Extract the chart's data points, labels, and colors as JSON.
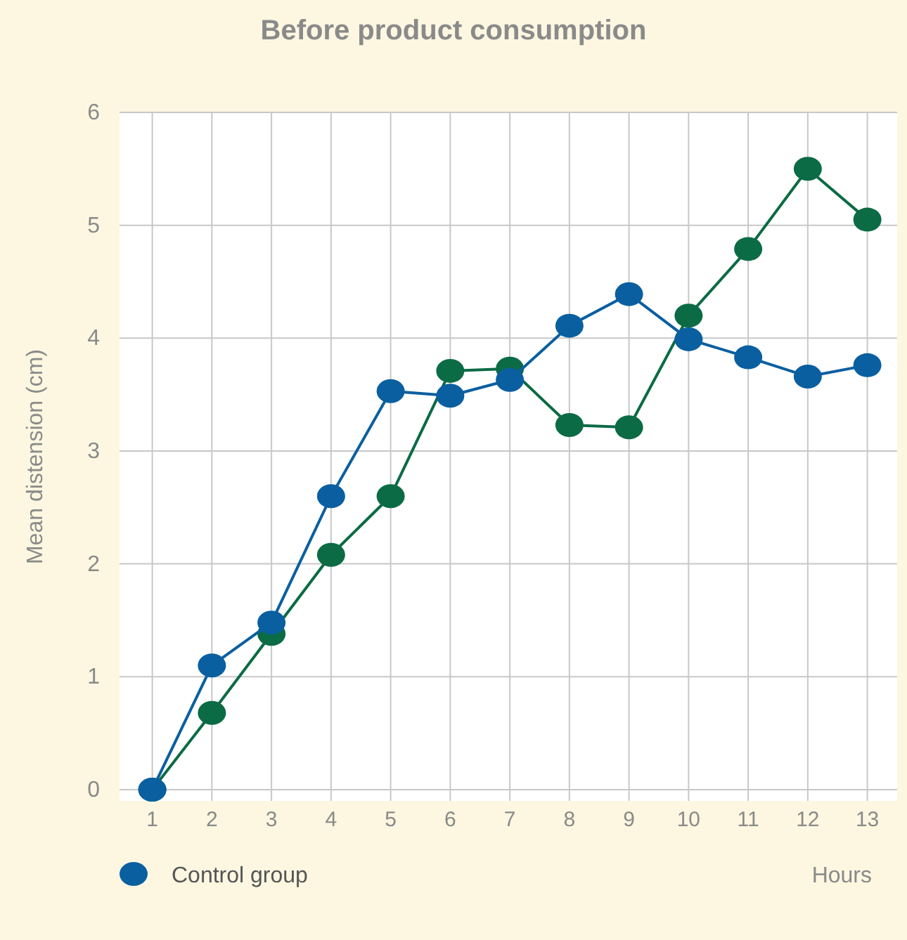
{
  "chart_data": {
    "type": "line",
    "title": "Before product consumption",
    "xlabel": "Hours",
    "ylabel": "Mean distension (cm)",
    "x": [
      1,
      2,
      3,
      4,
      5,
      6,
      7,
      8,
      9,
      10,
      11,
      12,
      13
    ],
    "series": [
      {
        "color": "#0b6b45",
        "values": [
          0,
          0.68,
          1.38,
          2.08,
          2.6,
          3.71,
          3.73,
          3.23,
          3.21,
          4.2,
          4.79,
          5.5,
          5.05
        ]
      },
      {
        "name": "Control group",
        "color": "#0a5fa0",
        "values": [
          0,
          1.1,
          1.48,
          2.6,
          3.53,
          3.49,
          3.63,
          4.11,
          4.39,
          3.99,
          3.83,
          3.66,
          3.76
        ]
      }
    ],
    "xlim": [
      0.45,
      13.5
    ],
    "xticks": [
      1,
      2,
      3,
      4,
      5,
      6,
      7,
      8,
      9,
      10,
      11,
      12,
      13
    ],
    "ylim": [
      -0.1,
      6
    ],
    "yticks": [
      0,
      1,
      2,
      3,
      4,
      5,
      6
    ],
    "grid": true,
    "legend": "bottom left",
    "marker": "circle",
    "line_style": "solid"
  }
}
